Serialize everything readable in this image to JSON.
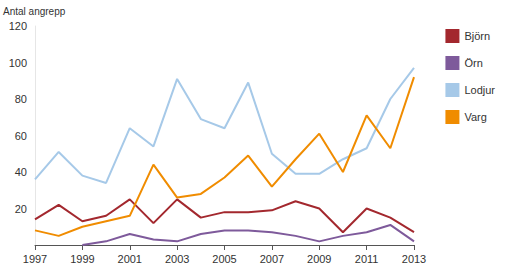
{
  "chart_data": {
    "type": "line",
    "y_label": "Antal angrepp",
    "x": [
      1997,
      1998,
      1999,
      2000,
      2001,
      2002,
      2003,
      2004,
      2005,
      2006,
      2007,
      2008,
      2009,
      2010,
      2011,
      2012,
      2013
    ],
    "series": [
      {
        "name": "Björn",
        "color": "#a3282e",
        "values": [
          14,
          22,
          13,
          16,
          25,
          12,
          25,
          15,
          18,
          18,
          19,
          24,
          20,
          7,
          20,
          15,
          7
        ]
      },
      {
        "name": "Örn",
        "color": "#7e5a9b",
        "values": [
          null,
          null,
          0,
          2,
          6,
          3,
          2,
          6,
          8,
          8,
          7,
          5,
          2,
          5,
          7,
          11,
          2
        ]
      },
      {
        "name": "Lodjur",
        "color": "#a6c9e8",
        "values": [
          36,
          51,
          38,
          34,
          64,
          54,
          91,
          69,
          64,
          89,
          50,
          39,
          39,
          47,
          53,
          80,
          97
        ]
      },
      {
        "name": "Varg",
        "color": "#f08c00",
        "values": [
          8,
          5,
          10,
          13,
          16,
          44,
          26,
          28,
          37,
          49,
          32,
          47,
          61,
          40,
          71,
          53,
          92
        ]
      }
    ],
    "xlim": [
      1997,
      2013
    ],
    "xticks": [
      1997,
      1999,
      2001,
      2003,
      2005,
      2007,
      2009,
      2011,
      2013
    ],
    "ylim": [
      0,
      120
    ],
    "yticks": [
      20,
      40,
      60,
      80,
      100,
      120
    ],
    "grid": false,
    "legend": "upper right"
  }
}
